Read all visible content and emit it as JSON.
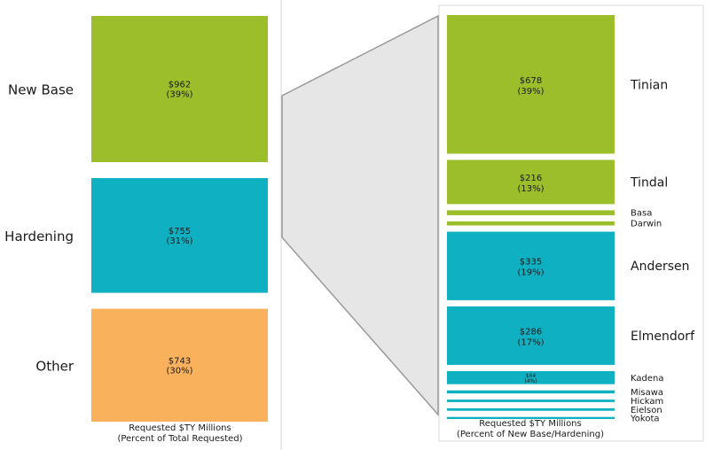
{
  "chart_data": [
    {
      "type": "bar",
      "stacked": true,
      "categories": [
        "New Base",
        "Hardening",
        "Other"
      ],
      "values": [
        962,
        755,
        743
      ],
      "value_labels": [
        "$962",
        "$755",
        "$743"
      ],
      "percent_labels": [
        "(39%)",
        "(31%)",
        "(30%)"
      ],
      "colors": [
        "#9cbe2b",
        "#0eb0c1",
        "#f9b25b"
      ],
      "xlabel_line1": "Requested $TY Millions",
      "xlabel_line2": "(Percent of Total Requested)"
    },
    {
      "type": "bar",
      "stacked": true,
      "categories": [
        "Tinian",
        "Tindal",
        "Basa",
        "Darwin",
        "Andersen",
        "Elmendorf",
        "Kadena",
        "Misawa",
        "Hickam",
        "Eielson",
        "Yokota"
      ],
      "values": [
        678,
        216,
        24,
        20,
        335,
        286,
        64,
        15,
        12,
        12,
        10
      ],
      "value_labels": [
        "$678",
        "$216",
        "",
        "",
        "$335",
        "$286",
        "$64",
        "",
        "",
        "",
        ""
      ],
      "percent_labels": [
        "(39%)",
        "(13%)",
        "",
        "",
        "(19%)",
        "(17%)",
        "(4%)",
        "",
        "",
        "",
        ""
      ],
      "colors": [
        "#9cbe2b",
        "#9cbe2b",
        "#9cbe2b",
        "#9cbe2b",
        "#0eb0c1",
        "#0eb0c1",
        "#0eb0c1",
        "#0eb0c1",
        "#0eb0c1",
        "#0eb0c1",
        "#0eb0c1"
      ],
      "xlabel_line1": "Requested $TY Millions",
      "xlabel_line2": "(Percent of New Base/Hardening)"
    }
  ]
}
